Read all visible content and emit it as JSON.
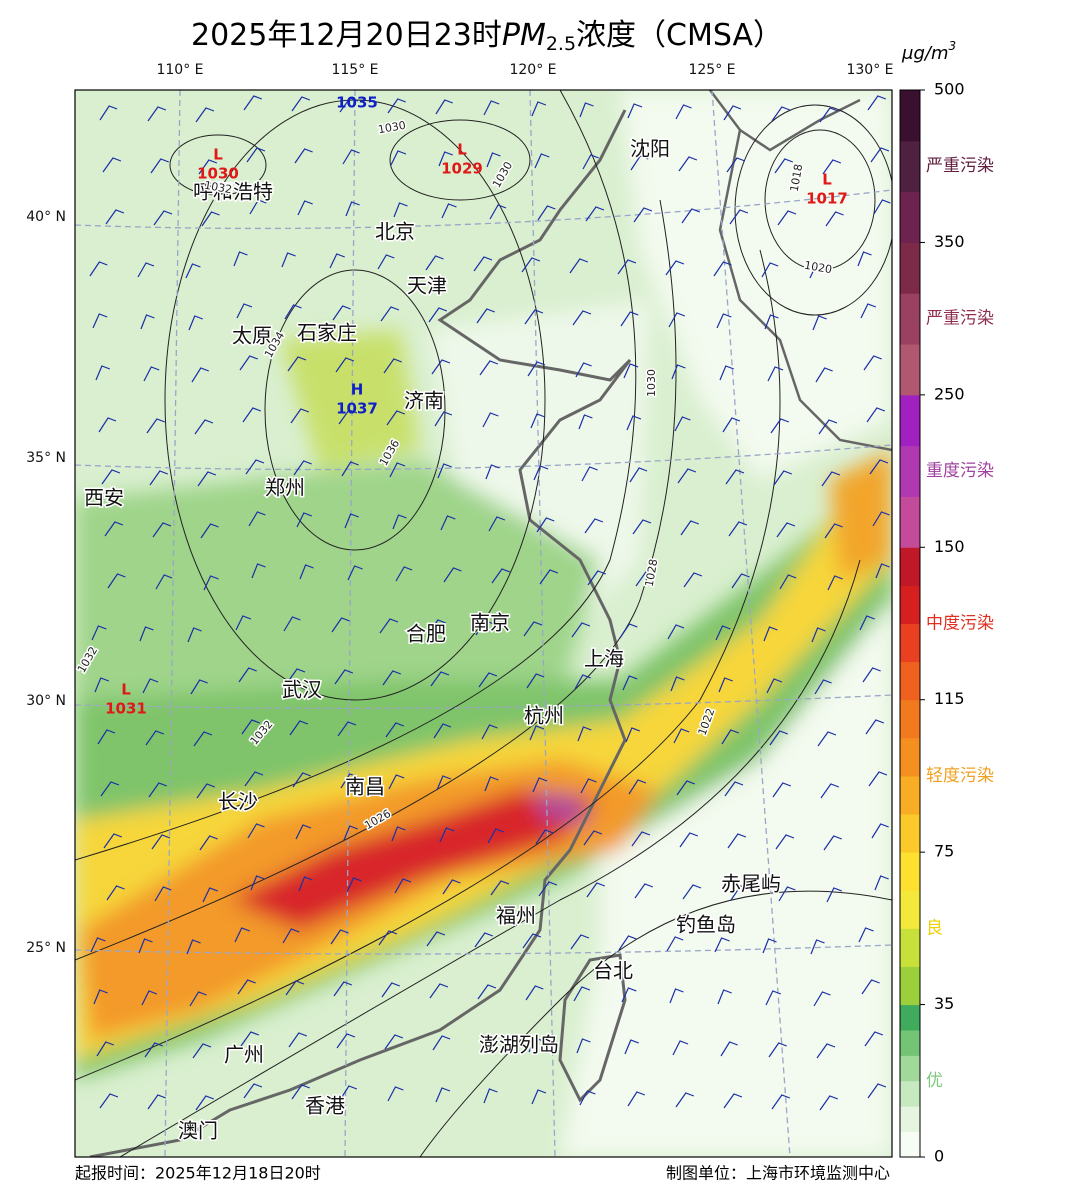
{
  "title": {
    "date": "2025年12月20日23时",
    "pm": "PM",
    "sub": "2.5",
    "rest": "浓度（CMSA）"
  },
  "unit": {
    "base": "μg/m",
    "sup": "3"
  },
  "lon_labels": [
    "110° E",
    "115° E",
    "120° E",
    "125° E",
    "130° E"
  ],
  "lat_labels": [
    "40° N",
    "35° N",
    "30° N",
    "25° N"
  ],
  "colorbar": {
    "ticks": [
      0,
      35,
      75,
      115,
      150,
      250,
      350,
      500
    ],
    "levels": [
      "优",
      "良",
      "轻度污染",
      "中度污染",
      "重度污染",
      "严重污染",
      "严重污染"
    ]
  },
  "cities": [
    "呼和浩特",
    "北京",
    "天津",
    "沈阳",
    "太原",
    "石家庄",
    "济南",
    "郑州",
    "西安",
    "合肥",
    "南京",
    "上海",
    "武汉",
    "杭州",
    "长沙",
    "南昌",
    "福州",
    "赤尾屿",
    "钓鱼岛",
    "台北",
    "澎湖列岛",
    "广州",
    "香港",
    "澳门"
  ],
  "pressure_centers": [
    {
      "symbol": "L",
      "value": 1030
    },
    {
      "symbol": "L",
      "value": 1029
    },
    {
      "symbol": "L",
      "value": 1017
    },
    {
      "symbol": "H",
      "value": 1037
    },
    {
      "symbol": "L",
      "value": 1031
    },
    {
      "value": 1035
    }
  ],
  "isobar_labels": [
    1030,
    1032,
    1030,
    1018,
    1020,
    1034,
    1036,
    1030,
    1028,
    1032,
    1032,
    1026,
    1022
  ],
  "footer": {
    "issue": "起报时间：2025年12月18日20时",
    "maker": "制图单位：上海市环境监测中心"
  }
}
